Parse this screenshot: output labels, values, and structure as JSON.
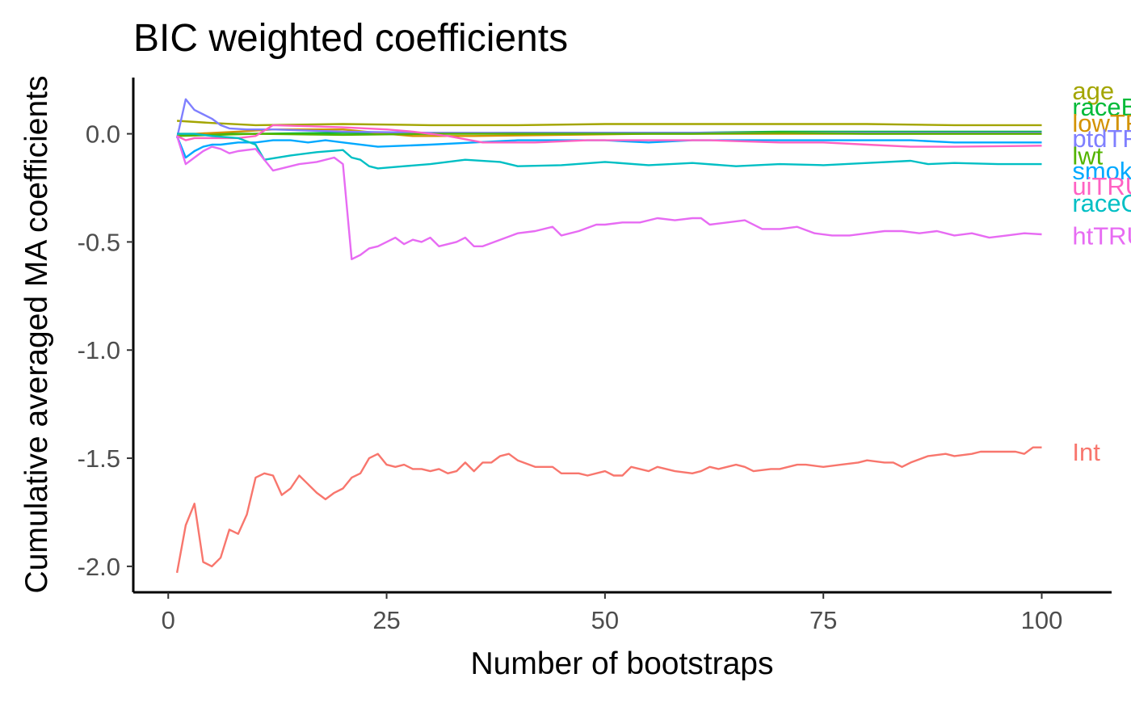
{
  "chart_data": {
    "type": "line",
    "title": "BIC weighted coefficients",
    "xlabel": "Number of bootstraps",
    "ylabel": "Cumulative averaged MA coefficients",
    "xlim": [
      -4,
      108
    ],
    "ylim": [
      -2.12,
      0.26
    ],
    "x_ticks": [
      0,
      25,
      50,
      75,
      100
    ],
    "y_ticks": [
      0.0,
      -0.5,
      -1.0,
      -1.5,
      -2.0
    ],
    "y_tick_labels": [
      "0.0",
      "-0.5",
      "-1.0",
      "-1.5",
      "-2.0"
    ],
    "grid": false,
    "legend": "none (series labels printed at line ends, right side)",
    "series": [
      {
        "name": "Int",
        "color": "#F8766D",
        "label_y": -1.47,
        "points": [
          [
            1,
            -2.03
          ],
          [
            2,
            -1.81
          ],
          [
            3,
            -1.71
          ],
          [
            4,
            -1.98
          ],
          [
            5,
            -2.0
          ],
          [
            6,
            -1.96
          ],
          [
            7,
            -1.83
          ],
          [
            8,
            -1.85
          ],
          [
            9,
            -1.76
          ],
          [
            10,
            -1.59
          ],
          [
            11,
            -1.57
          ],
          [
            12,
            -1.58
          ],
          [
            13,
            -1.67
          ],
          [
            14,
            -1.64
          ],
          [
            15,
            -1.58
          ],
          [
            16,
            -1.62
          ],
          [
            17,
            -1.66
          ],
          [
            18,
            -1.69
          ],
          [
            19,
            -1.66
          ],
          [
            20,
            -1.64
          ],
          [
            21,
            -1.59
          ],
          [
            22,
            -1.57
          ],
          [
            23,
            -1.5
          ],
          [
            24,
            -1.48
          ],
          [
            25,
            -1.53
          ],
          [
            26,
            -1.54
          ],
          [
            27,
            -1.53
          ],
          [
            28,
            -1.55
          ],
          [
            29,
            -1.55
          ],
          [
            30,
            -1.56
          ],
          [
            31,
            -1.55
          ],
          [
            32,
            -1.57
          ],
          [
            33,
            -1.56
          ],
          [
            34,
            -1.52
          ],
          [
            35,
            -1.56
          ],
          [
            36,
            -1.52
          ],
          [
            37,
            -1.52
          ],
          [
            38,
            -1.49
          ],
          [
            39,
            -1.48
          ],
          [
            40,
            -1.51
          ],
          [
            42,
            -1.54
          ],
          [
            44,
            -1.54
          ],
          [
            45,
            -1.57
          ],
          [
            47,
            -1.57
          ],
          [
            48,
            -1.58
          ],
          [
            50,
            -1.56
          ],
          [
            51,
            -1.58
          ],
          [
            52,
            -1.58
          ],
          [
            53,
            -1.54
          ],
          [
            55,
            -1.56
          ],
          [
            56,
            -1.54
          ],
          [
            58,
            -1.56
          ],
          [
            60,
            -1.57
          ],
          [
            61,
            -1.56
          ],
          [
            62,
            -1.54
          ],
          [
            63,
            -1.55
          ],
          [
            65,
            -1.53
          ],
          [
            66,
            -1.54
          ],
          [
            67,
            -1.56
          ],
          [
            69,
            -1.55
          ],
          [
            70,
            -1.55
          ],
          [
            72,
            -1.53
          ],
          [
            73,
            -1.53
          ],
          [
            75,
            -1.54
          ],
          [
            77,
            -1.53
          ],
          [
            79,
            -1.52
          ],
          [
            80,
            -1.51
          ],
          [
            82,
            -1.52
          ],
          [
            83,
            -1.52
          ],
          [
            84,
            -1.54
          ],
          [
            85,
            -1.52
          ],
          [
            87,
            -1.49
          ],
          [
            89,
            -1.48
          ],
          [
            90,
            -1.49
          ],
          [
            92,
            -1.48
          ],
          [
            93,
            -1.47
          ],
          [
            95,
            -1.47
          ],
          [
            97,
            -1.47
          ],
          [
            98,
            -1.48
          ],
          [
            99,
            -1.45
          ],
          [
            100,
            -1.45
          ]
        ]
      },
      {
        "name": "age",
        "color": "#A3A500",
        "label_y": 0.2,
        "points": [
          [
            1,
            0.06
          ],
          [
            5,
            0.05
          ],
          [
            10,
            0.04
          ],
          [
            20,
            0.045
          ],
          [
            30,
            0.04
          ],
          [
            40,
            0.04
          ],
          [
            50,
            0.045
          ],
          [
            60,
            0.045
          ],
          [
            70,
            0.045
          ],
          [
            80,
            0.045
          ],
          [
            90,
            0.04
          ],
          [
            100,
            0.04
          ]
        ]
      },
      {
        "name": "raceBlack",
        "color": "#00BA38",
        "label_y": 0.125,
        "points": [
          [
            1,
            0.0
          ],
          [
            3,
            -0.005
          ],
          [
            6,
            0.0
          ],
          [
            10,
            0.0
          ],
          [
            20,
            0.005
          ],
          [
            30,
            0.0
          ],
          [
            40,
            0.005
          ],
          [
            50,
            0.005
          ],
          [
            60,
            0.005
          ],
          [
            70,
            0.01
          ],
          [
            80,
            0.01
          ],
          [
            90,
            0.01
          ],
          [
            100,
            0.01
          ]
        ]
      },
      {
        "name": "lowTRUE",
        "color": "#D39200",
        "label_y": 0.05,
        "points": [
          [
            1,
            0.0
          ],
          [
            3,
            0.0
          ],
          [
            8,
            0.01
          ],
          [
            12,
            0.02
          ],
          [
            20,
            0.02
          ],
          [
            25,
            0.0
          ],
          [
            28,
            -0.01
          ],
          [
            35,
            -0.01
          ],
          [
            45,
            -0.005
          ],
          [
            55,
            0.0
          ],
          [
            65,
            0.0
          ],
          [
            75,
            0.0
          ],
          [
            85,
            0.0
          ],
          [
            100,
            0.0
          ]
        ]
      },
      {
        "name": "ptdTRUE",
        "color": "#7F7FFF",
        "label_y": -0.02,
        "points": [
          [
            1,
            -0.02
          ],
          [
            2,
            0.16
          ],
          [
            3,
            0.11
          ],
          [
            4,
            0.09
          ],
          [
            5,
            0.07
          ],
          [
            6,
            0.04
          ],
          [
            7,
            0.025
          ],
          [
            9,
            0.02
          ],
          [
            12,
            0.02
          ],
          [
            16,
            0.015
          ],
          [
            20,
            0.01
          ],
          [
            30,
            0.005
          ],
          [
            40,
            0.005
          ],
          [
            50,
            0.005
          ],
          [
            60,
            0.005
          ],
          [
            70,
            0.005
          ],
          [
            80,
            0.005
          ],
          [
            90,
            0.005
          ],
          [
            100,
            0.005
          ]
        ]
      },
      {
        "name": "lwt",
        "color": "#53B400",
        "label_y": -0.1,
        "points": [
          [
            1,
            -0.01
          ],
          [
            10,
            0.0
          ],
          [
            20,
            -0.005
          ],
          [
            30,
            0.0
          ],
          [
            40,
            0.0
          ],
          [
            50,
            0.0
          ],
          [
            60,
            0.0
          ],
          [
            70,
            0.005
          ],
          [
            80,
            0.0
          ],
          [
            90,
            0.0
          ],
          [
            100,
            0.0
          ]
        ]
      },
      {
        "name": "smoke",
        "color": "#00A9FF",
        "label_y": -0.17,
        "points": [
          [
            1,
            -0.01
          ],
          [
            2,
            -0.11
          ],
          [
            3,
            -0.08
          ],
          [
            4,
            -0.06
          ],
          [
            5,
            -0.05
          ],
          [
            6,
            -0.05
          ],
          [
            8,
            -0.04
          ],
          [
            10,
            -0.04
          ],
          [
            12,
            -0.03
          ],
          [
            14,
            -0.03
          ],
          [
            16,
            -0.04
          ],
          [
            18,
            -0.03
          ],
          [
            20,
            -0.04
          ],
          [
            24,
            -0.06
          ],
          [
            30,
            -0.05
          ],
          [
            35,
            -0.04
          ],
          [
            40,
            -0.03
          ],
          [
            50,
            -0.03
          ],
          [
            55,
            -0.04
          ],
          [
            60,
            -0.03
          ],
          [
            70,
            -0.03
          ],
          [
            80,
            -0.03
          ],
          [
            85,
            -0.03
          ],
          [
            90,
            -0.04
          ],
          [
            100,
            -0.04
          ]
        ]
      },
      {
        "name": "uiTRUE",
        "color": "#FF61C3",
        "label_y": -0.24,
        "points": [
          [
            1,
            -0.01
          ],
          [
            2,
            -0.03
          ],
          [
            3,
            -0.02
          ],
          [
            5,
            -0.02
          ],
          [
            8,
            -0.02
          ],
          [
            10,
            -0.01
          ],
          [
            12,
            0.04
          ],
          [
            16,
            0.035
          ],
          [
            20,
            0.03
          ],
          [
            25,
            0.02
          ],
          [
            28,
            0.01
          ],
          [
            32,
            -0.01
          ],
          [
            36,
            -0.04
          ],
          [
            42,
            -0.04
          ],
          [
            48,
            -0.03
          ],
          [
            55,
            -0.03
          ],
          [
            62,
            -0.03
          ],
          [
            70,
            -0.04
          ],
          [
            75,
            -0.04
          ],
          [
            80,
            -0.05
          ],
          [
            85,
            -0.06
          ],
          [
            90,
            -0.06
          ],
          [
            100,
            -0.055
          ]
        ]
      },
      {
        "name": "raceOther",
        "color": "#00BFC4",
        "label_y": -0.32,
        "points": [
          [
            1,
            0.0
          ],
          [
            3,
            0.0
          ],
          [
            5,
            -0.01
          ],
          [
            8,
            -0.02
          ],
          [
            10,
            -0.05
          ],
          [
            11,
            -0.12
          ],
          [
            14,
            -0.1
          ],
          [
            17,
            -0.085
          ],
          [
            20,
            -0.075
          ],
          [
            21,
            -0.11
          ],
          [
            22,
            -0.12
          ],
          [
            23,
            -0.15
          ],
          [
            24,
            -0.16
          ],
          [
            27,
            -0.15
          ],
          [
            30,
            -0.14
          ],
          [
            34,
            -0.12
          ],
          [
            38,
            -0.13
          ],
          [
            40,
            -0.15
          ],
          [
            45,
            -0.145
          ],
          [
            50,
            -0.13
          ],
          [
            55,
            -0.145
          ],
          [
            60,
            -0.135
          ],
          [
            65,
            -0.15
          ],
          [
            70,
            -0.14
          ],
          [
            75,
            -0.145
          ],
          [
            80,
            -0.135
          ],
          [
            85,
            -0.125
          ],
          [
            87,
            -0.14
          ],
          [
            90,
            -0.135
          ],
          [
            95,
            -0.14
          ],
          [
            100,
            -0.14
          ]
        ]
      },
      {
        "name": "htTRUE",
        "color": "#E76BF3",
        "label_y": -0.47,
        "points": [
          [
            1,
            -0.01
          ],
          [
            2,
            -0.14
          ],
          [
            3,
            -0.11
          ],
          [
            4,
            -0.08
          ],
          [
            5,
            -0.06
          ],
          [
            6,
            -0.07
          ],
          [
            7,
            -0.09
          ],
          [
            8,
            -0.08
          ],
          [
            10,
            -0.07
          ],
          [
            12,
            -0.17
          ],
          [
            15,
            -0.14
          ],
          [
            17,
            -0.13
          ],
          [
            19,
            -0.11
          ],
          [
            20,
            -0.14
          ],
          [
            21,
            -0.58
          ],
          [
            22,
            -0.56
          ],
          [
            23,
            -0.53
          ],
          [
            24,
            -0.52
          ],
          [
            25,
            -0.5
          ],
          [
            26,
            -0.48
          ],
          [
            27,
            -0.51
          ],
          [
            28,
            -0.49
          ],
          [
            29,
            -0.5
          ],
          [
            30,
            -0.48
          ],
          [
            31,
            -0.52
          ],
          [
            33,
            -0.5
          ],
          [
            34,
            -0.48
          ],
          [
            35,
            -0.52
          ],
          [
            36,
            -0.52
          ],
          [
            38,
            -0.49
          ],
          [
            40,
            -0.46
          ],
          [
            42,
            -0.45
          ],
          [
            44,
            -0.43
          ],
          [
            45,
            -0.47
          ],
          [
            47,
            -0.45
          ],
          [
            49,
            -0.42
          ],
          [
            50,
            -0.42
          ],
          [
            52,
            -0.41
          ],
          [
            54,
            -0.41
          ],
          [
            56,
            -0.39
          ],
          [
            58,
            -0.4
          ],
          [
            60,
            -0.39
          ],
          [
            61,
            -0.39
          ],
          [
            62,
            -0.42
          ],
          [
            64,
            -0.41
          ],
          [
            66,
            -0.4
          ],
          [
            68,
            -0.44
          ],
          [
            70,
            -0.44
          ],
          [
            72,
            -0.43
          ],
          [
            74,
            -0.46
          ],
          [
            76,
            -0.47
          ],
          [
            78,
            -0.47
          ],
          [
            80,
            -0.46
          ],
          [
            82,
            -0.45
          ],
          [
            84,
            -0.45
          ],
          [
            86,
            -0.46
          ],
          [
            88,
            -0.45
          ],
          [
            90,
            -0.47
          ],
          [
            92,
            -0.46
          ],
          [
            94,
            -0.48
          ],
          [
            96,
            -0.47
          ],
          [
            98,
            -0.46
          ],
          [
            100,
            -0.465
          ]
        ]
      }
    ]
  }
}
